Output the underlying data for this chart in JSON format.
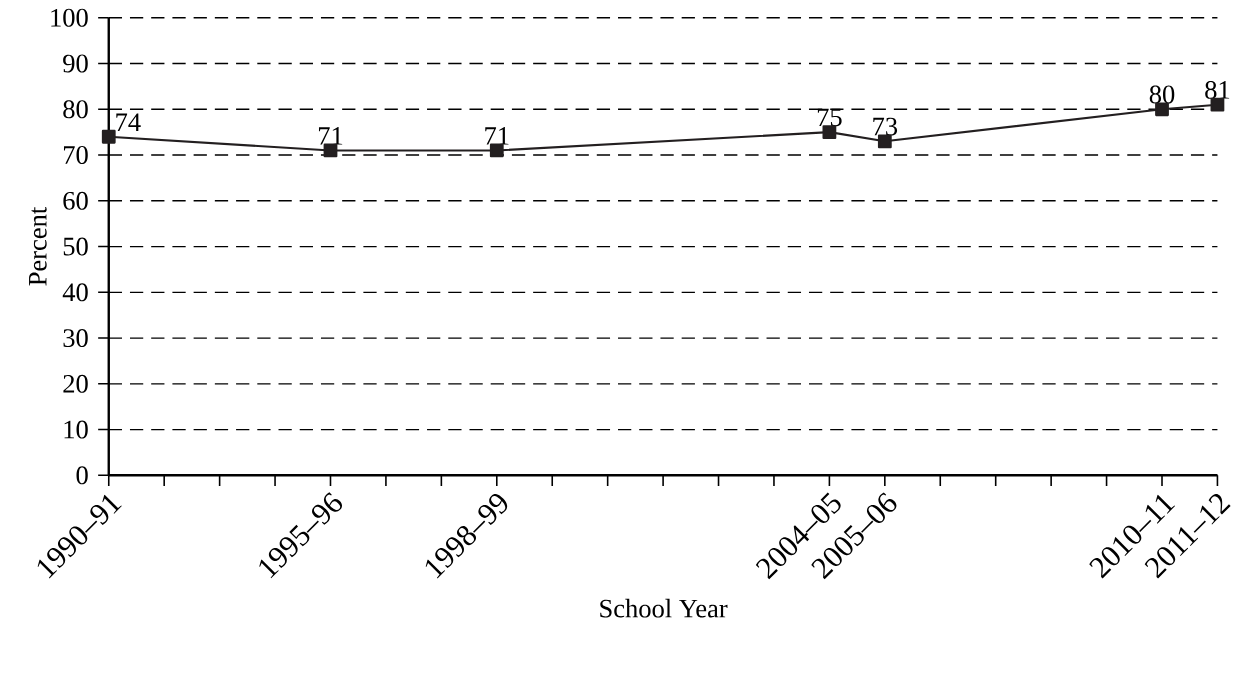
{
  "chart_data": {
    "type": "line",
    "xlabel": "School Year",
    "ylabel": "Percent",
    "categories": [
      "1990–91",
      null,
      null,
      null,
      "1995–96",
      null,
      null,
      "1998–99",
      null,
      null,
      null,
      null,
      null,
      "2004–05",
      "2005–06",
      null,
      null,
      null,
      null,
      "2010–11",
      "2011–12"
    ],
    "series": [
      {
        "color": "#231f20",
        "values": [
          74,
          null,
          null,
          null,
          71,
          null,
          null,
          71,
          null,
          null,
          null,
          null,
          null,
          75,
          73,
          null,
          null,
          null,
          null,
          80,
          81
        ]
      }
    ],
    "ylim": [
      0,
      100
    ],
    "yticks": [
      0,
      10,
      20,
      30,
      40,
      50,
      60,
      70,
      80,
      90,
      100
    ],
    "grid": "y",
    "marker": "square",
    "line_style": "solid",
    "data_labels": true
  }
}
